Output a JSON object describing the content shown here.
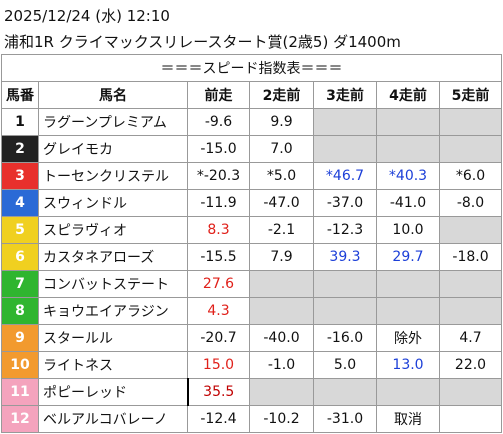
{
  "header": {
    "datetime": "2025/12/24 (水) 12:10",
    "race": "浦和1R クライマックスリレースタート賞(2歳5) ダ1400m"
  },
  "table": {
    "title": "＝＝＝スピード指数表＝＝＝",
    "columns": [
      "馬番",
      "馬名",
      "前走",
      "2走前",
      "3走前",
      "4走前",
      "5走前"
    ],
    "rows": [
      [
        "1",
        "ラグーンプレミアム",
        "-9.6",
        "9.9",
        null,
        null,
        null
      ],
      [
        "2",
        "グレイモカ",
        "-15.0",
        "7.0",
        null,
        null,
        null
      ],
      [
        "3",
        "トーセンクリステル",
        "*-20.3",
        "*5.0",
        "*46.7",
        "*40.3",
        "*6.0"
      ],
      [
        "4",
        "スウィンドル",
        "-11.9",
        "-47.0",
        "-37.0",
        "-41.0",
        "-8.0"
      ],
      [
        "5",
        "スピラヴィオ",
        "8.3",
        "-2.1",
        "-12.3",
        "10.0",
        null
      ],
      [
        "6",
        "カスタネアローズ",
        "-15.5",
        "7.9",
        "39.3",
        "29.7",
        "-18.0"
      ],
      [
        "7",
        "コンバットステート",
        "27.6",
        null,
        null,
        null,
        null
      ],
      [
        "8",
        "キョウエイアラジン",
        "4.3",
        null,
        null,
        null,
        null
      ],
      [
        "9",
        "スタールル",
        "-20.7",
        "-40.0",
        "-16.0",
        "除外",
        "4.7"
      ],
      [
        "10",
        "ライトネス",
        "15.0",
        "-1.0",
        "5.0",
        "13.0",
        "22.0"
      ],
      [
        "11",
        "ポピーレッド",
        "35.5",
        null,
        null,
        null,
        null
      ],
      [
        "12",
        "ベルアルコバレーノ",
        "-12.4",
        "-10.2",
        "-31.0",
        "取消",
        null
      ]
    ]
  }
}
